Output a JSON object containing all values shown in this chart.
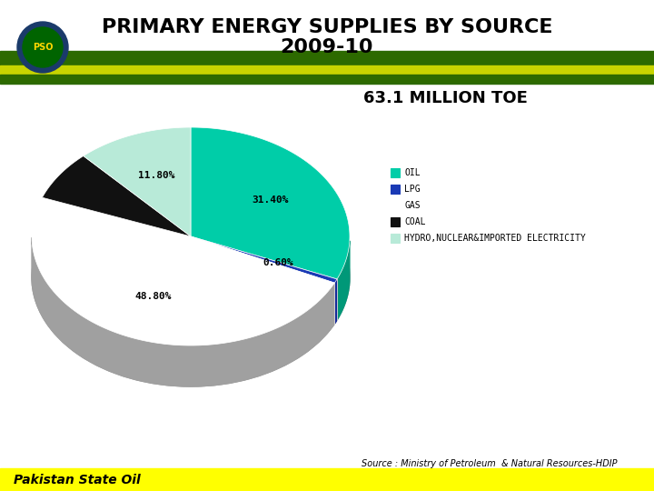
{
  "title_line1": "PRIMARY ENERGY SUPPLIES BY SOURCE",
  "title_line2": "2009-10",
  "subtitle": "63.1 MILLION TOE",
  "labels": [
    "OIL",
    "LPG",
    "GAS",
    "COAL",
    "HYDRO,NUCLEAR&IMPORTED ELECTRICITY"
  ],
  "percentages": [
    31.4,
    0.6,
    48.8,
    7.4,
    11.8
  ],
  "colors_top": [
    "#00CDA8",
    "#1A3AB5",
    "#FFFFFF",
    "#111111",
    "#B8EAD8"
  ],
  "colors_side": [
    "#009878",
    "#12289A",
    "#A0A0A0",
    "#080808",
    "#88BFAA"
  ],
  "autopct_labels": [
    "31.40%",
    "0.60%",
    "48.80%",
    "",
    "11.80%"
  ],
  "source_text": "Source : Ministry of Petroleum  & Natural Resources-HDIP",
  "footer_text": "Pakistan State Oil",
  "header_green": "#2D6A00",
  "header_yellow": "#C8D400",
  "footer_bg": "#FFFF00",
  "background_color": "#FFFFFF",
  "title_fontsize": 16,
  "subtitle_fontsize": 13,
  "legend_labels": [
    "OIL",
    "LPG",
    "GAS",
    "COAL",
    "HYDRO,NUCLEAR&IMPORTED ELECTRICITY"
  ],
  "legend_colors": [
    "#00CDA8",
    "#1A3AB5",
    "#FFFFFF",
    "#111111",
    "#B8EAD8"
  ]
}
